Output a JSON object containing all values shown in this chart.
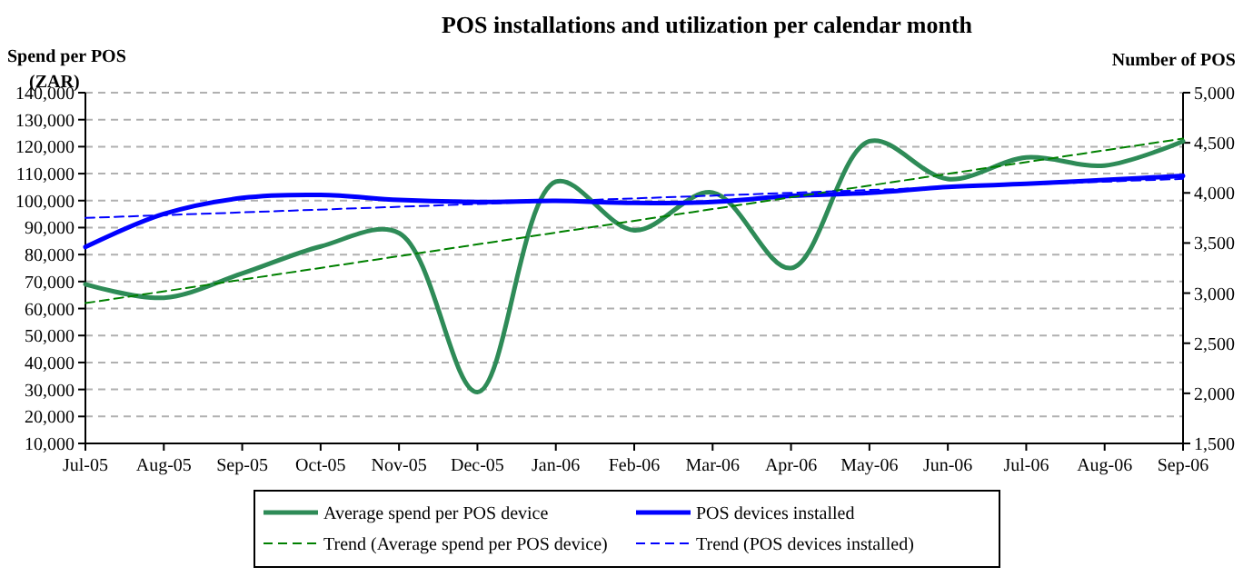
{
  "chart_data": {
    "type": "line",
    "title": "POS installations and utilization per calendar month",
    "ylabel": "Spend per POS (ZAR)",
    "y2label": "Number of POS",
    "categories": [
      "Jul-05",
      "Aug-05",
      "Sep-05",
      "Oct-05",
      "Nov-05",
      "Dec-05",
      "Jan-06",
      "Feb-06",
      "Mar-06",
      "Apr-06",
      "May-06",
      "Jun-06",
      "Jul-06",
      "Aug-06",
      "Sep-06"
    ],
    "series": [
      {
        "name": "Average spend per POS device",
        "color": "#2e8b57",
        "values": [
          69000,
          64000,
          73000,
          83000,
          88000,
          29000,
          107000,
          89000,
          103000,
          75000,
          122000,
          108000,
          116000,
          113000,
          122000
        ]
      },
      {
        "name": "POS devices installed",
        "color": "#0000ff",
        "axis": "y2",
        "values": [
          3460,
          3790,
          3950,
          3980,
          3930,
          3910,
          3920,
          3900,
          3910,
          3970,
          4000,
          4060,
          4090,
          4130,
          4170
        ]
      },
      {
        "name": "Trend (Average spend per POS device)",
        "color": "#008000",
        "line_style": "dashed",
        "x": [
          "Jul-05",
          "Sep-06"
        ],
        "values": [
          62000,
          123000
        ]
      },
      {
        "name": "Trend (POS devices installed)",
        "color": "#0000ff",
        "line_style": "dashed",
        "axis": "y2",
        "x": [
          "Jul-05",
          "Sep-06"
        ],
        "values": [
          3750,
          4140
        ]
      }
    ],
    "ylim": [
      10000,
      140000
    ],
    "yticks": [
      {
        "value": 10000,
        "label": "10,000"
      },
      {
        "value": 20000,
        "label": "20,000"
      },
      {
        "value": 30000,
        "label": "30,000"
      },
      {
        "value": 40000,
        "label": "40,000"
      },
      {
        "value": 50000,
        "label": "50,000"
      },
      {
        "value": 60000,
        "label": "60,000"
      },
      {
        "value": 70000,
        "label": "70,000"
      },
      {
        "value": 80000,
        "label": "80,000"
      },
      {
        "value": 90000,
        "label": "90,000"
      },
      {
        "value": 100000,
        "label": "100,000"
      },
      {
        "value": 110000,
        "label": "110,000"
      },
      {
        "value": 120000,
        "label": "120,000"
      },
      {
        "value": 130000,
        "label": "130,000"
      },
      {
        "value": 140000,
        "label": "140,000"
      }
    ],
    "y2lim": [
      1500,
      5000
    ],
    "y2ticks": [
      {
        "value": 1500,
        "label": "1,500"
      },
      {
        "value": 2000,
        "label": "2,000"
      },
      {
        "value": 2500,
        "label": "2,500"
      },
      {
        "value": 3000,
        "label": "3,000"
      },
      {
        "value": 3500,
        "label": "3,500"
      },
      {
        "value": 4000,
        "label": "4,000"
      },
      {
        "value": 4500,
        "label": "4,500"
      },
      {
        "value": 5000,
        "label": "5,000"
      }
    ],
    "grid": "y",
    "legend": "bottom",
    "line_style": "solid",
    "marker": "none"
  }
}
